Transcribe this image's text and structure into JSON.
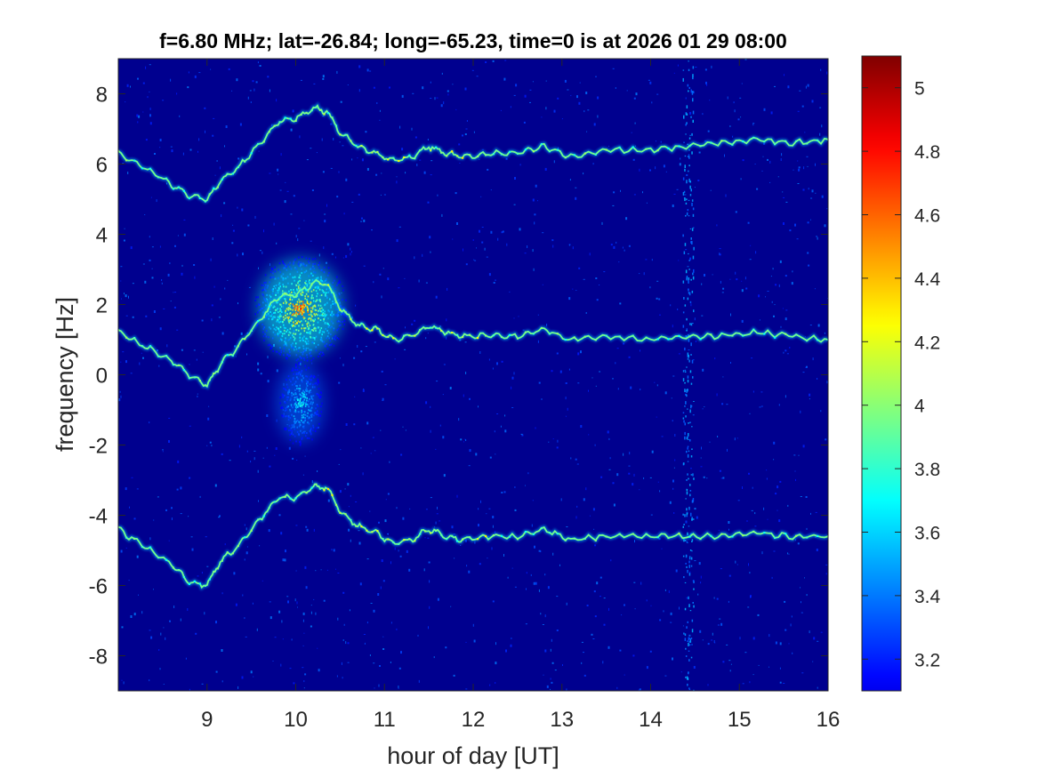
{
  "chart_data": {
    "type": "heatmap",
    "title": "f=6.80 MHz;  lat=-26.84; long=-65.23, time=0 is at 2026 01 29 08:00",
    "xlabel": "hour of day [UT]",
    "ylabel": "frequency [Hz]",
    "xlim": [
      8,
      16
    ],
    "ylim": [
      -9,
      9
    ],
    "xticks": [
      9,
      10,
      11,
      12,
      13,
      14,
      15,
      16
    ],
    "yticks": [
      -8,
      -6,
      -4,
      -2,
      0,
      2,
      4,
      6,
      8
    ],
    "colorbar": {
      "colormap": "jet",
      "clim": [
        3.1,
        5.1
      ],
      "ticks": [
        3.2,
        3.4,
        3.6,
        3.8,
        4,
        4.2,
        4.4,
        4.6,
        4.8,
        5
      ]
    },
    "background_color": "#00008f",
    "traces": [
      {
        "name": "upper",
        "points": [
          [
            8.0,
            6.3
          ],
          [
            8.3,
            5.9
          ],
          [
            8.6,
            5.4
          ],
          [
            8.8,
            5.1
          ],
          [
            9.0,
            5.0
          ],
          [
            9.15,
            5.5
          ],
          [
            9.35,
            5.9
          ],
          [
            9.6,
            6.6
          ],
          [
            9.8,
            7.2
          ],
          [
            10.0,
            7.3
          ],
          [
            10.2,
            7.6
          ],
          [
            10.35,
            7.5
          ],
          [
            10.5,
            6.9
          ],
          [
            10.7,
            6.5
          ],
          [
            10.9,
            6.3
          ],
          [
            11.1,
            6.1
          ],
          [
            11.3,
            6.2
          ],
          [
            11.5,
            6.5
          ],
          [
            11.7,
            6.3
          ],
          [
            11.9,
            6.2
          ],
          [
            12.2,
            6.3
          ],
          [
            12.5,
            6.3
          ],
          [
            12.8,
            6.5
          ],
          [
            13.1,
            6.2
          ],
          [
            13.5,
            6.4
          ],
          [
            14.0,
            6.4
          ],
          [
            14.4,
            6.5
          ],
          [
            14.8,
            6.6
          ],
          [
            15.2,
            6.7
          ],
          [
            15.6,
            6.6
          ],
          [
            16.0,
            6.7
          ]
        ]
      },
      {
        "name": "middle",
        "points": [
          [
            8.0,
            1.2
          ],
          [
            8.3,
            0.8
          ],
          [
            8.6,
            0.4
          ],
          [
            8.8,
            0.0
          ],
          [
            9.0,
            -0.3
          ],
          [
            9.15,
            0.3
          ],
          [
            9.35,
            0.8
          ],
          [
            9.6,
            1.6
          ],
          [
            9.8,
            2.2
          ],
          [
            10.0,
            2.3
          ],
          [
            10.2,
            2.6
          ],
          [
            10.35,
            2.6
          ],
          [
            10.5,
            1.9
          ],
          [
            10.7,
            1.4
          ],
          [
            10.9,
            1.3
          ],
          [
            11.1,
            1.0
          ],
          [
            11.3,
            1.1
          ],
          [
            11.5,
            1.4
          ],
          [
            11.7,
            1.2
          ],
          [
            11.9,
            1.1
          ],
          [
            12.2,
            1.1
          ],
          [
            12.5,
            1.1
          ],
          [
            12.8,
            1.3
          ],
          [
            13.1,
            1.0
          ],
          [
            13.5,
            1.1
          ],
          [
            14.0,
            1.0
          ],
          [
            14.4,
            1.1
          ],
          [
            14.8,
            1.1
          ],
          [
            15.2,
            1.2
          ],
          [
            15.6,
            1.1
          ],
          [
            16.0,
            1.0
          ]
        ]
      },
      {
        "name": "lower",
        "points": [
          [
            8.0,
            -4.4
          ],
          [
            8.3,
            -4.9
          ],
          [
            8.6,
            -5.4
          ],
          [
            8.8,
            -5.9
          ],
          [
            9.0,
            -6.0
          ],
          [
            9.15,
            -5.3
          ],
          [
            9.35,
            -4.9
          ],
          [
            9.6,
            -4.1
          ],
          [
            9.8,
            -3.5
          ],
          [
            10.0,
            -3.5
          ],
          [
            10.2,
            -3.2
          ],
          [
            10.35,
            -3.2
          ],
          [
            10.5,
            -3.9
          ],
          [
            10.7,
            -4.3
          ],
          [
            10.9,
            -4.5
          ],
          [
            11.1,
            -4.8
          ],
          [
            11.3,
            -4.7
          ],
          [
            11.5,
            -4.4
          ],
          [
            11.7,
            -4.6
          ],
          [
            11.9,
            -4.7
          ],
          [
            12.2,
            -4.6
          ],
          [
            12.5,
            -4.6
          ],
          [
            12.8,
            -4.4
          ],
          [
            13.1,
            -4.7
          ],
          [
            13.5,
            -4.6
          ],
          [
            14.0,
            -4.6
          ],
          [
            14.4,
            -4.6
          ],
          [
            14.8,
            -4.6
          ],
          [
            15.2,
            -4.5
          ],
          [
            15.6,
            -4.6
          ],
          [
            16.0,
            -4.6
          ]
        ]
      }
    ],
    "hotspots": [
      {
        "x": 10.05,
        "y": 1.9,
        "peak": 4.9
      },
      {
        "x": 10.05,
        "y": -0.8,
        "peak": 3.9
      }
    ],
    "vertical_band_x": 14.42
  }
}
